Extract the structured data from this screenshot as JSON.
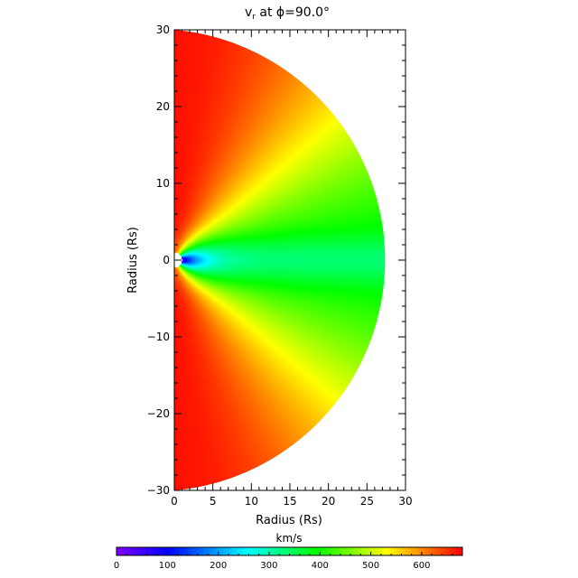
{
  "chart_data": {
    "type": "heatmap",
    "title_main": "v",
    "title_sub": "r",
    "title_rest": " at ϕ=90.0°",
    "xlabel": "Radius (Rs)",
    "ylabel": "Radius (Rs)",
    "xlim": [
      0,
      30
    ],
    "ylim": [
      -30,
      30
    ],
    "x_ticks": [
      "0",
      "5",
      "10",
      "15",
      "20",
      "25",
      "30"
    ],
    "y_ticks": [
      "30",
      "20",
      "10",
      "0",
      "−10",
      "−20",
      "−30"
    ],
    "colorbar": {
      "label": "km/s",
      "range": [
        0,
        680
      ],
      "ticks": [
        "0",
        "100",
        "200",
        "300",
        "400",
        "500",
        "600"
      ],
      "colormap": "rainbow",
      "stops": [
        "#8000ff",
        "#0000ff",
        "#00ffff",
        "#00ff00",
        "#ffff00",
        "#ff0000"
      ]
    },
    "field": {
      "description_units": "km/s",
      "inner_radius": 1,
      "outer_radius": 30
    }
  }
}
